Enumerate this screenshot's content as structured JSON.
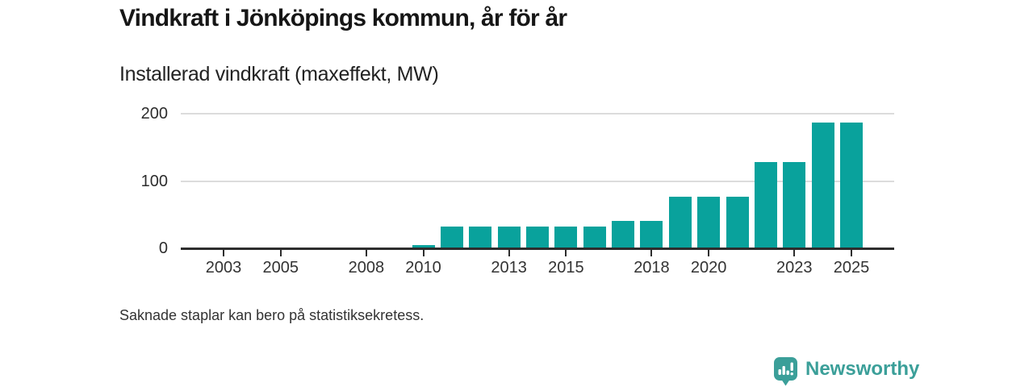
{
  "header": {
    "title": "Vindkraft i Jönköpings kommun, år för år",
    "subtitle": "Installerad vindkraft (maxeffekt, MW)"
  },
  "footnote": "Saknade staplar kan bero på statistiksekretess.",
  "branding": {
    "wordmark": "Newsworthy",
    "logo_icon": "bar-chart-exclamation-badge-icon",
    "color": "#3b9f99"
  },
  "colors": {
    "bar": "#09a29c",
    "axis": "#2d2d2d",
    "gridline": "#dcdcdc",
    "title_text": "#161616",
    "body_text": "#333333",
    "background": "#ffffff"
  },
  "chart_data": {
    "type": "bar",
    "title": "Vindkraft i Jönköpings kommun, år för år",
    "subtitle": "Installerad vindkraft (maxeffekt, MW)",
    "unit": "MW",
    "categories": [
      2010,
      2011,
      2012,
      2013,
      2014,
      2015,
      2016,
      2017,
      2018,
      2019,
      2020,
      2021,
      2022,
      2023,
      2024,
      2025
    ],
    "values": [
      4,
      31,
      31,
      31,
      31,
      31,
      31,
      40,
      40,
      75,
      75,
      75,
      127,
      127,
      186,
      186
    ],
    "xlabel": "",
    "ylabel": "Installerad vindkraft (maxeffekt, MW)",
    "x_axis": {
      "slot_range_years": [
        2002,
        2026
      ],
      "tick_labels": [
        2003,
        2005,
        2008,
        2010,
        2013,
        2015,
        2018,
        2020,
        2023,
        2025
      ]
    },
    "y_axis": {
      "ticks": [
        0,
        100,
        200
      ],
      "ylim": [
        0,
        213
      ]
    },
    "grid": "horizontal-only",
    "legend": "none",
    "bar_color": "#09a29c",
    "missing_bars_note": "Saknade staplar kan bero på statistiksekretess."
  }
}
